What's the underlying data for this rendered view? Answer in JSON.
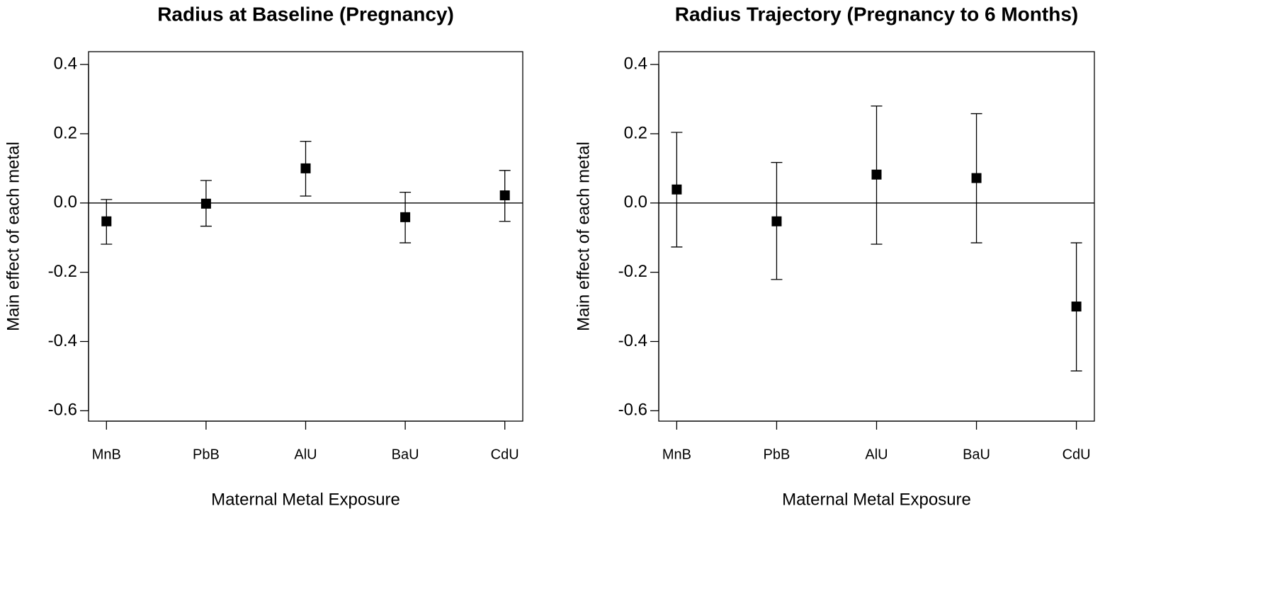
{
  "chart_data": [
    {
      "type": "errorbar",
      "title": "Radius at Baseline (Pregnancy)",
      "x_label": "Maternal Metal Exposure",
      "y_label": "Main effect of each metal",
      "categories": [
        "MnB",
        "PbB",
        "AlU",
        "BaU",
        "CdU"
      ],
      "series": [
        {
          "color": "#000000",
          "values": [
            -0.053,
            -0.002,
            0.1,
            -0.041,
            0.022
          ],
          "lower": [
            -0.119,
            -0.067,
            0.02,
            -0.115,
            -0.053
          ],
          "upper": [
            0.01,
            0.065,
            0.178,
            0.031,
            0.094
          ]
        }
      ],
      "ylim": [
        -0.63,
        0.437
      ],
      "yticks": [
        -0.6,
        -0.4,
        -0.2,
        {
          "value": 0,
          "label": "0.0"
        },
        0.2,
        0.4
      ],
      "reference_line": 0
    },
    {
      "type": "errorbar",
      "title": "Radius Trajectory (Pregnancy to 6 Months)",
      "x_label": "Maternal Metal Exposure",
      "y_label": "Main effect of each metal",
      "categories": [
        "MnB",
        "PbB",
        "AlU",
        "BaU",
        "CdU"
      ],
      "series": [
        {
          "color": "#000000",
          "values": [
            0.039,
            -0.053,
            0.082,
            0.072,
            -0.299
          ],
          "lower": [
            -0.127,
            -0.221,
            -0.119,
            -0.115,
            -0.485
          ],
          "upper": [
            0.204,
            0.117,
            0.28,
            0.258,
            -0.115
          ]
        }
      ],
      "ylim": [
        -0.63,
        0.437
      ],
      "yticks": [
        -0.6,
        -0.4,
        -0.2,
        {
          "value": 0,
          "label": "0.0"
        },
        0.2,
        0.4
      ],
      "reference_line": 0
    }
  ]
}
